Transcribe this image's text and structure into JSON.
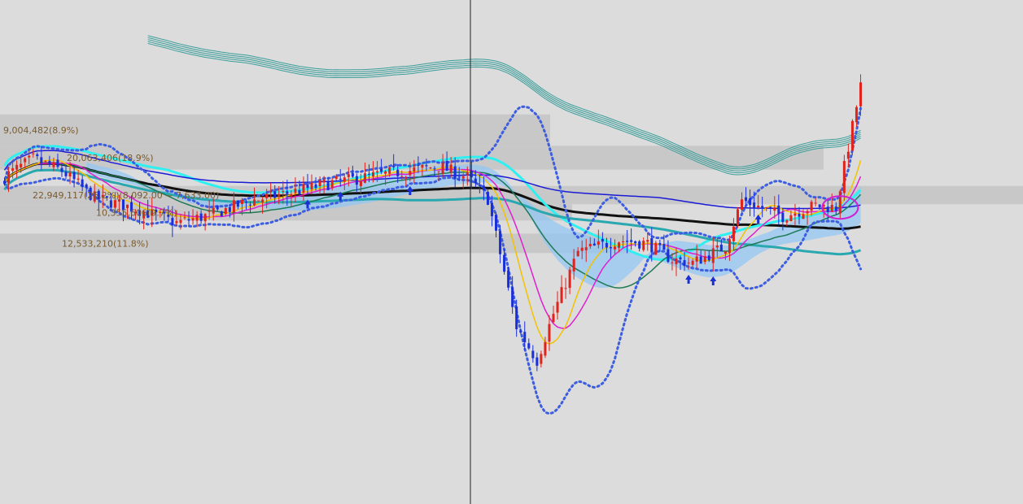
{
  "chart_data": {
    "type": "candlestick",
    "grid": false,
    "background": "#dcdcdc",
    "crosshair": true,
    "x": {
      "count": 210
    },
    "y": {
      "min": 6000,
      "max": 10500,
      "inverted": false
    },
    "volume_profile": [
      {
        "label": "9,004,482(8.9%)",
        "price_low": 9230,
        "price_high": 9520,
        "value": 9004482,
        "percent": 8.9
      },
      {
        "label": "20,063,406(18.9%)",
        "price_low": 9010,
        "price_high": 9230,
        "value": 20063406,
        "percent": 18.9
      },
      {
        "label": "22,949,117(26.2%)(8,092.00 ~ 7,633.00)",
        "price_low": 8690,
        "price_high": 8860,
        "value": 22949117,
        "percent": 26.2,
        "range_low": 7633.0,
        "range_high": 8092.0
      },
      {
        "label": "10,355,606(9.7%)",
        "price_low": 8540,
        "price_high": 8690,
        "value": 10355606,
        "percent": 9.7
      },
      {
        "label": "12,533,210(11.8%)",
        "price_low": 8240,
        "price_high": 8420,
        "value": 12533210,
        "percent": 11.8
      }
    ],
    "colors": {
      "up": "#e0231b",
      "down": "#1a2fd8",
      "ma_cyan": "#2ef0f0",
      "ma_black": "#111111",
      "ma_navy": "#1b1bd6",
      "ma_teal": "#2aa8b0",
      "bollinger": "#3d5ee0",
      "envelope": "#3a9e9a",
      "ichimoku_cloud": "#8fc5f5",
      "ma_magenta": "#e020d0",
      "ma_yellow": "#f2c200",
      "ma_green": "#1d7a55",
      "volume_profile_bar": "#c4c4c4",
      "marker": "#1a2fd8",
      "highlight_ellipse": "#d020d0"
    },
    "highlight": {
      "type": "ellipse",
      "index": 204
    }
  }
}
